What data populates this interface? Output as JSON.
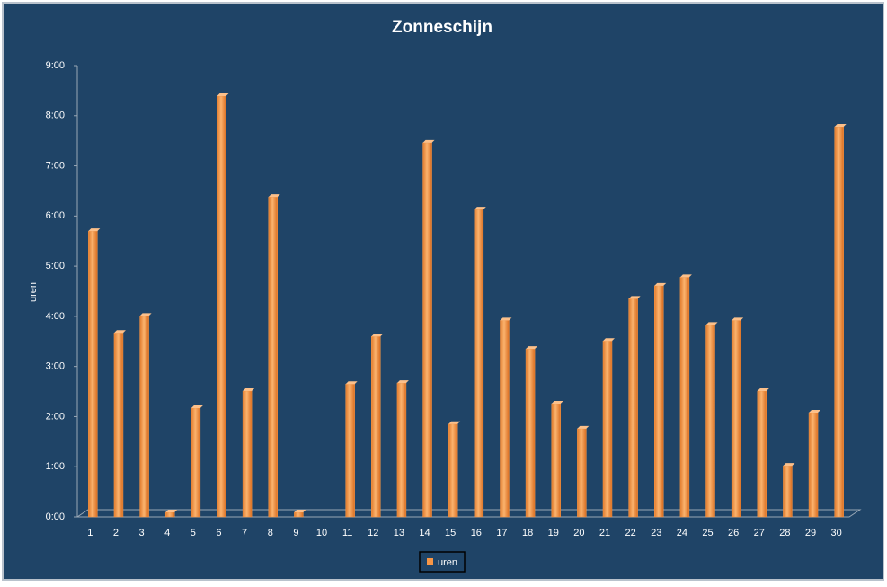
{
  "chart_data": {
    "type": "bar",
    "title": "Zonneschijn",
    "y_label": "uren",
    "categories": [
      "1",
      "2",
      "3",
      "4",
      "5",
      "6",
      "7",
      "8",
      "9",
      "10",
      "11",
      "12",
      "13",
      "14",
      "15",
      "16",
      "17",
      "18",
      "19",
      "20",
      "21",
      "22",
      "23",
      "24",
      "25",
      "26",
      "27",
      "28",
      "29",
      "30"
    ],
    "series": [
      {
        "name": "uren",
        "color": "#f79646",
        "values": [
          5.7,
          3.67,
          4.01,
          0.09,
          2.17,
          8.39,
          2.51,
          6.38,
          0.09,
          0,
          2.65,
          3.6,
          2.67,
          7.46,
          1.85,
          6.13,
          3.92,
          3.35,
          2.26,
          1.76,
          3.51,
          4.35,
          4.61,
          4.78,
          3.83,
          3.92,
          2.51,
          1.02,
          2.08,
          7.78
        ]
      }
    ],
    "ylim": [
      0,
      9
    ],
    "yticks": [
      {
        "value": 0,
        "label": "0:00"
      },
      {
        "value": 1,
        "label": "1:00"
      },
      {
        "value": 2,
        "label": "2:00"
      },
      {
        "value": 3,
        "label": "3:00"
      },
      {
        "value": 4,
        "label": "4:00"
      },
      {
        "value": 5,
        "label": "5:00"
      },
      {
        "value": 6,
        "label": "6:00"
      },
      {
        "value": 7,
        "label": "7:00"
      },
      {
        "value": 8,
        "label": "8:00"
      },
      {
        "value": 9,
        "label": "9:00"
      }
    ],
    "legend": "bottom"
  }
}
